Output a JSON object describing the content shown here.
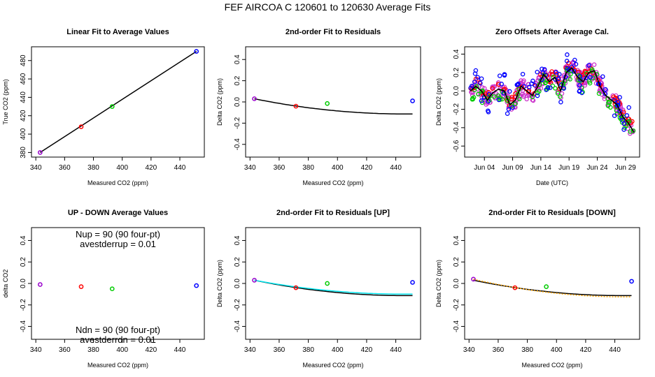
{
  "figure_title": "FEF   AIRCOA C   120601 to 120630   Average Fits",
  "colors": {
    "blue": "#0000ff",
    "red": "#ff0000",
    "green": "#00cc00",
    "purple": "#9900cc",
    "black": "#000000",
    "cyan": "#00e5ee",
    "orange": "#ffa500",
    "magenta": "#cc33cc"
  },
  "chart_data": [
    {
      "id": "p1",
      "type": "scatter",
      "title": "Linear Fit to Average Values",
      "xlabel": "Measured CO2 (ppm)",
      "ylabel": "True CO2 (ppm)",
      "xlim": [
        337,
        457
      ],
      "ylim": [
        375,
        495
      ],
      "xticks": [
        340,
        360,
        380,
        400,
        420,
        440
      ],
      "yticks": [
        380,
        400,
        420,
        440,
        460,
        480
      ],
      "points": [
        {
          "x": 343,
          "y": 380,
          "color": "purple"
        },
        {
          "x": 371.5,
          "y": 408,
          "color": "red"
        },
        {
          "x": 393,
          "y": 430,
          "color": "green"
        },
        {
          "x": 451.5,
          "y": 490,
          "color": "blue"
        }
      ],
      "lines": [
        {
          "x": [
            343,
            451.5
          ],
          "y": [
            380,
            490
          ],
          "color": "black"
        }
      ]
    },
    {
      "id": "p2",
      "type": "scatter",
      "title": "2nd-order Fit to Residuals",
      "xlabel": "Measured CO2 (ppm)",
      "ylabel": "Delta CO2 (ppm)",
      "xlim": [
        337,
        457
      ],
      "ylim": [
        -0.52,
        0.52
      ],
      "xticks": [
        340,
        360,
        380,
        400,
        420,
        440
      ],
      "yticks": [
        -0.4,
        -0.2,
        0.0,
        0.2,
        0.4
      ],
      "yticklabels": [
        "-0.4",
        "-0.2",
        "0.0",
        "0.2",
        "0.4"
      ],
      "points": [
        {
          "x": 343,
          "y": 0.03,
          "color": "purple"
        },
        {
          "x": 371.5,
          "y": -0.04,
          "color": "red"
        },
        {
          "x": 393,
          "y": -0.015,
          "color": "green"
        },
        {
          "x": 451.5,
          "y": 0.01,
          "color": "blue"
        }
      ],
      "curves": [
        {
          "coef": [
            0.0298,
            -0.00278,
            1.35e-05
          ],
          "x0": 343,
          "xrange": [
            343,
            451.5
          ],
          "color": "black"
        }
      ]
    },
    {
      "id": "p3",
      "type": "line",
      "title": "Zero Offsets After Average Cal.",
      "xlabel": "Date (UTC)",
      "ylabel": "Delta CO2 (ppm)",
      "xlim": [
        0,
        31
      ],
      "ylim": [
        -0.72,
        0.48
      ],
      "xticks": [
        3.5,
        8.5,
        13.5,
        18.5,
        23.5,
        28.5
      ],
      "xticklabels": [
        "Jun 04",
        "Jun 09",
        "Jun 14",
        "Jun 19",
        "Jun 24",
        "Jun 29"
      ],
      "yticks": [
        -0.6,
        -0.4,
        -0.2,
        0.0,
        0.2,
        0.4
      ],
      "yticklabels": [
        "-0.6",
        "-0.4",
        "-0.2",
        "0.0",
        "0.2",
        "0.4"
      ],
      "trend": {
        "x": [
          1,
          2,
          3,
          4,
          5,
          6,
          7,
          8,
          9,
          10,
          11,
          12,
          13,
          14,
          15,
          16,
          17,
          18,
          19,
          20,
          21,
          22,
          23,
          24,
          25,
          26,
          27,
          28,
          29,
          30
        ],
        "y": [
          0.0,
          0.05,
          0.0,
          -0.1,
          -0.02,
          0.02,
          0.0,
          -0.15,
          -0.1,
          0.05,
          0.0,
          -0.05,
          0.05,
          0.18,
          0.1,
          0.15,
          0.0,
          0.2,
          0.25,
          0.15,
          0.1,
          0.2,
          0.22,
          0.05,
          -0.05,
          -0.1,
          -0.15,
          -0.28,
          -0.35,
          -0.45
        ]
      },
      "scatter_series": [
        {
          "name": "magenta band",
          "color": "magenta",
          "offset": 0.0,
          "spread": 0.09,
          "per_day": 10
        },
        {
          "name": "red",
          "color": "red",
          "offset": 0.03,
          "spread": 0.06,
          "per_day": 3
        },
        {
          "name": "green",
          "color": "green",
          "offset": -0.04,
          "spread": 0.08,
          "per_day": 3
        },
        {
          "name": "blue",
          "color": "blue",
          "offset": 0.02,
          "spread": 0.18,
          "per_day": 3
        }
      ]
    },
    {
      "id": "p4",
      "type": "scatter",
      "title": "UP - DOWN Average Values",
      "xlabel": "Measured CO2 (ppm)",
      "ylabel": "delta CO2",
      "xlim": [
        337,
        457
      ],
      "ylim": [
        -0.52,
        0.52
      ],
      "xticks": [
        340,
        360,
        380,
        400,
        420,
        440
      ],
      "yticks": [
        -0.4,
        -0.2,
        0.0,
        0.2,
        0.4
      ],
      "yticklabels": [
        "-0.4",
        "-0.2",
        "0.0",
        "0.2",
        "0.4"
      ],
      "points": [
        {
          "x": 343,
          "y": -0.01,
          "color": "purple"
        },
        {
          "x": 371.5,
          "y": -0.03,
          "color": "red"
        },
        {
          "x": 393,
          "y": -0.05,
          "color": "green"
        },
        {
          "x": 451.5,
          "y": -0.02,
          "color": "blue"
        }
      ],
      "annotations": [
        {
          "text": "Nup = 90 (90 four-pt)",
          "x": 397,
          "y": 0.455
        },
        {
          "text": "avestderrup =  0.01",
          "x": 397,
          "y": 0.365
        },
        {
          "text": "Ndn = 90 (90 four-pt)",
          "x": 397,
          "y": -0.435
        },
        {
          "text": "avestderrdn =  0.01",
          "x": 397,
          "y": -0.525
        }
      ]
    },
    {
      "id": "p5",
      "type": "scatter",
      "title": "2nd-order Fit to Residuals [UP]",
      "xlabel": "Measured CO2 (ppm)",
      "ylabel": "Delta CO2 (ppm)",
      "xlim": [
        337,
        457
      ],
      "ylim": [
        -0.52,
        0.52
      ],
      "xticks": [
        340,
        360,
        380,
        400,
        420,
        440
      ],
      "yticks": [
        -0.4,
        -0.2,
        0.0,
        0.2,
        0.4
      ],
      "yticklabels": [
        "-0.4",
        "-0.2",
        "0.0",
        "0.2",
        "0.4"
      ],
      "points": [
        {
          "x": 343,
          "y": 0.03,
          "color": "purple"
        },
        {
          "x": 371.5,
          "y": -0.04,
          "color": "red"
        },
        {
          "x": 393,
          "y": 0.0,
          "color": "green"
        },
        {
          "x": 451.5,
          "y": 0.01,
          "color": "blue"
        }
      ],
      "curves": [
        {
          "coef": [
            0.0298,
            -0.00278,
            1.35e-05
          ],
          "x0": 343,
          "xrange": [
            343,
            451.5
          ],
          "color": "black"
        },
        {
          "coef": [
            0.0298,
            -0.0025,
            1.21e-05
          ],
          "x0": 343,
          "xrange": [
            343,
            451.5
          ],
          "color": "cyan"
        }
      ]
    },
    {
      "id": "p6",
      "type": "scatter",
      "title": "2nd-order Fit to Residuals [DOWN]",
      "xlabel": "Measured CO2 (ppm)",
      "ylabel": "Delta CO2 (ppm)",
      "xlim": [
        337,
        457
      ],
      "ylim": [
        -0.52,
        0.52
      ],
      "xticks": [
        340,
        360,
        380,
        400,
        420,
        440
      ],
      "yticks": [
        -0.4,
        -0.2,
        0.0,
        0.2,
        0.4
      ],
      "yticklabels": [
        "-0.4",
        "-0.2",
        "0.0",
        "0.2",
        "0.4"
      ],
      "points": [
        {
          "x": 343,
          "y": 0.04,
          "color": "purple"
        },
        {
          "x": 371.5,
          "y": -0.04,
          "color": "red"
        },
        {
          "x": 393,
          "y": -0.03,
          "color": "green"
        },
        {
          "x": 451.5,
          "y": 0.02,
          "color": "blue"
        }
      ],
      "curves": [
        {
          "coef": [
            0.0298,
            -0.00278,
            1.35e-05
          ],
          "x0": 343,
          "xrange": [
            343,
            451.5
          ],
          "color": "black"
        },
        {
          "coef": [
            0.0398,
            -0.00318,
            1.53e-05
          ],
          "x0": 343,
          "xrange": [
            343,
            451.5
          ],
          "color": "orange",
          "dashed": true
        }
      ]
    }
  ]
}
